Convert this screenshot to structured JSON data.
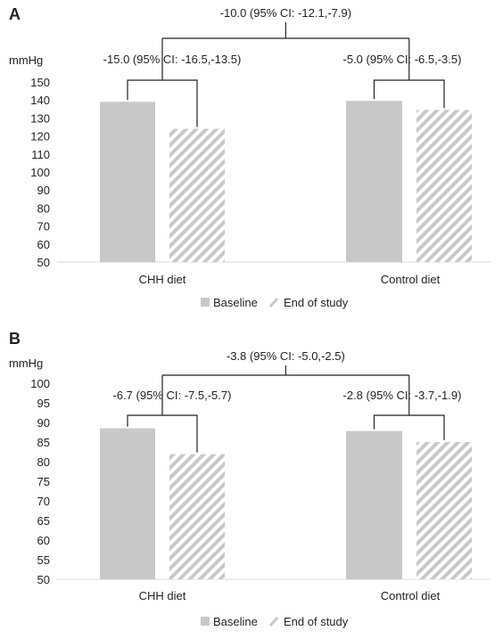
{
  "colors": {
    "baseline": "#c8c8c8",
    "end_hatch": "#c8c8c8",
    "bracket": "#222222",
    "text": "#222222"
  },
  "chart_data": [
    {
      "panel_label": "A",
      "type": "bar",
      "ylabel": "mmHg",
      "ylim": [
        50,
        150
      ],
      "yticks": [
        50,
        60,
        70,
        80,
        90,
        100,
        110,
        120,
        130,
        140,
        150
      ],
      "categories": [
        "CHH diet",
        "Control diet"
      ],
      "series": [
        {
          "name": "Baseline",
          "values": [
            139,
            139.5
          ]
        },
        {
          "name": "End of study",
          "values": [
            124,
            134.5
          ]
        }
      ],
      "annotations": {
        "between_groups": "-10.0 (95% CI: -12.1,-7.9)",
        "within_groups": [
          "-15.0 (95% CI: -16.5,-13.5)",
          "-5.0 (95% CI: -6.5,-3.5)"
        ]
      },
      "legend_position": "bottom",
      "grid": false
    },
    {
      "panel_label": "B",
      "type": "bar",
      "ylabel": "mmHg",
      "ylim": [
        50,
        100
      ],
      "yticks": [
        50,
        55,
        60,
        65,
        70,
        75,
        80,
        85,
        90,
        95,
        100
      ],
      "categories": [
        "CHH diet",
        "Control diet"
      ],
      "series": [
        {
          "name": "Baseline",
          "values": [
            88.5,
            87.8
          ]
        },
        {
          "name": "End of study",
          "values": [
            81.9,
            85
          ]
        }
      ],
      "annotations": {
        "between_groups": "-3.8 (95% CI: -5.0,-2.5)",
        "within_groups": [
          "-6.7 (95% CI: -7.5,-5.7)",
          "-2.8 (95% CI: -3.7,-1.9)"
        ]
      },
      "legend_position": "bottom",
      "grid": false
    }
  ]
}
